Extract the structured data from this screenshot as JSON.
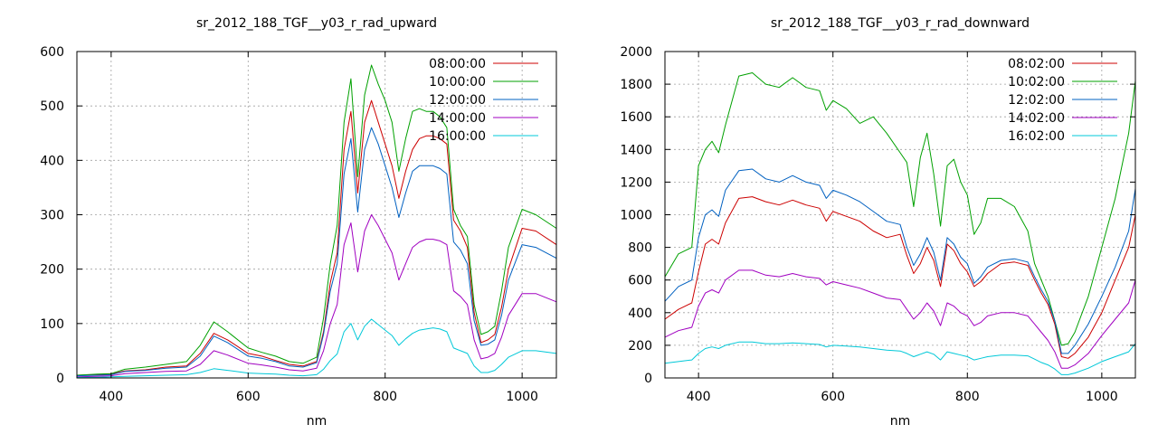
{
  "chart_data": [
    {
      "type": "line",
      "title": "sr_2012_188_TGF__y03_r_rad_upward",
      "xlabel": "nm",
      "ylabel": "",
      "xlim": [
        350,
        1050
      ],
      "ylim": [
        0,
        600
      ],
      "x_ticks": [
        400,
        600,
        800,
        1000
      ],
      "y_ticks": [
        0,
        100,
        200,
        300,
        400,
        500,
        600
      ],
      "grid": true,
      "legend_position": "top-right",
      "x": [
        350,
        380,
        400,
        420,
        450,
        480,
        510,
        530,
        550,
        570,
        600,
        620,
        640,
        660,
        680,
        700,
        710,
        720,
        730,
        740,
        750,
        760,
        770,
        780,
        790,
        800,
        810,
        820,
        830,
        840,
        850,
        860,
        870,
        880,
        890,
        900,
        910,
        920,
        930,
        940,
        950,
        960,
        970,
        980,
        1000,
        1020,
        1050
      ],
      "series": [
        {
          "name": "08:00:00",
          "color": "#cc0000",
          "values": [
            5,
            6,
            7,
            13,
            15,
            20,
            22,
            45,
            82,
            70,
            45,
            40,
            32,
            25,
            22,
            30,
            85,
            175,
            230,
            420,
            490,
            340,
            470,
            510,
            470,
            430,
            390,
            330,
            380,
            420,
            440,
            445,
            445,
            440,
            430,
            290,
            270,
            240,
            120,
            65,
            70,
            80,
            130,
            200,
            275,
            270,
            245
          ]
        },
        {
          "name": "10:00:00",
          "color": "#00a000",
          "values": [
            5,
            7,
            8,
            16,
            20,
            25,
            30,
            60,
            103,
            85,
            55,
            47,
            40,
            30,
            27,
            38,
            110,
            210,
            280,
            470,
            550,
            370,
            520,
            575,
            540,
            510,
            470,
            380,
            440,
            490,
            495,
            490,
            490,
            480,
            460,
            310,
            280,
            260,
            135,
            80,
            85,
            95,
            160,
            240,
            310,
            300,
            275
          ]
        },
        {
          "name": "12:00:00",
          "color": "#0060c0",
          "values": [
            4,
            5,
            6,
            12,
            14,
            18,
            20,
            40,
            77,
            65,
            40,
            36,
            30,
            22,
            20,
            28,
            80,
            160,
            210,
            375,
            440,
            305,
            420,
            460,
            430,
            390,
            350,
            295,
            340,
            380,
            390,
            390,
            390,
            385,
            375,
            250,
            235,
            210,
            105,
            60,
            62,
            70,
            115,
            180,
            245,
            240,
            220
          ]
        },
        {
          "name": "14:00:00",
          "color": "#a000c0",
          "values": [
            2,
            3,
            4,
            8,
            10,
            12,
            13,
            25,
            50,
            42,
            27,
            24,
            20,
            15,
            13,
            18,
            50,
            100,
            135,
            245,
            285,
            195,
            270,
            300,
            280,
            255,
            230,
            180,
            210,
            240,
            250,
            255,
            255,
            252,
            245,
            160,
            150,
            135,
            70,
            35,
            38,
            45,
            75,
            115,
            155,
            155,
            140
          ]
        },
        {
          "name": "16:00:00",
          "color": "#00c8d8",
          "values": [
            1,
            1,
            2,
            3,
            4,
            5,
            6,
            10,
            17,
            14,
            9,
            8,
            7,
            5,
            4,
            6,
            16,
            32,
            44,
            85,
            100,
            70,
            95,
            108,
            98,
            88,
            78,
            60,
            72,
            82,
            88,
            90,
            92,
            90,
            85,
            55,
            50,
            45,
            22,
            10,
            10,
            14,
            25,
            38,
            50,
            50,
            45
          ]
        }
      ]
    },
    {
      "type": "line",
      "title": "sr_2012_188_TGF__y03_r_rad_downward",
      "xlabel": "nm",
      "ylabel": "",
      "xlim": [
        350,
        1050
      ],
      "ylim": [
        0,
        2000
      ],
      "x_ticks": [
        400,
        600,
        800,
        1000
      ],
      "y_ticks": [
        0,
        200,
        400,
        600,
        800,
        1000,
        1200,
        1400,
        1600,
        1800,
        2000
      ],
      "grid": true,
      "legend_position": "top-right",
      "x": [
        350,
        370,
        390,
        400,
        410,
        420,
        430,
        440,
        460,
        480,
        500,
        520,
        540,
        560,
        580,
        590,
        600,
        620,
        640,
        660,
        680,
        700,
        710,
        720,
        730,
        740,
        750,
        760,
        770,
        780,
        790,
        800,
        810,
        820,
        830,
        850,
        870,
        890,
        900,
        910,
        920,
        930,
        940,
        950,
        960,
        980,
        1000,
        1020,
        1040,
        1050
      ],
      "series": [
        {
          "name": "08:02:00",
          "color": "#cc0000",
          "values": [
            360,
            420,
            460,
            650,
            820,
            850,
            820,
            950,
            1100,
            1110,
            1080,
            1060,
            1090,
            1060,
            1040,
            960,
            1020,
            990,
            960,
            900,
            860,
            880,
            750,
            640,
            700,
            800,
            720,
            560,
            820,
            780,
            700,
            650,
            560,
            590,
            640,
            700,
            710,
            690,
            600,
            520,
            450,
            330,
            130,
            120,
            150,
            250,
            400,
            600,
            800,
            1000
          ]
        },
        {
          "name": "10:02:00",
          "color": "#00a000",
          "values": [
            620,
            760,
            800,
            1300,
            1400,
            1450,
            1380,
            1550,
            1850,
            1870,
            1800,
            1780,
            1840,
            1780,
            1760,
            1640,
            1700,
            1650,
            1560,
            1600,
            1500,
            1380,
            1320,
            1050,
            1350,
            1500,
            1250,
            930,
            1300,
            1340,
            1200,
            1120,
            880,
            950,
            1100,
            1100,
            1050,
            900,
            700,
            600,
            500,
            350,
            200,
            210,
            280,
            500,
            800,
            1100,
            1500,
            1820
          ]
        },
        {
          "name": "12:02:00",
          "color": "#0060c0",
          "values": [
            470,
            560,
            600,
            860,
            1000,
            1030,
            990,
            1150,
            1270,
            1280,
            1220,
            1200,
            1240,
            1200,
            1180,
            1100,
            1150,
            1120,
            1080,
            1020,
            960,
            940,
            800,
            690,
            760,
            860,
            770,
            600,
            860,
            820,
            740,
            700,
            580,
            620,
            680,
            720,
            730,
            710,
            620,
            540,
            470,
            350,
            150,
            150,
            200,
            330,
            500,
            680,
            900,
            1160
          ]
        },
        {
          "name": "14:02:00",
          "color": "#a000c0",
          "values": [
            250,
            290,
            310,
            440,
            520,
            540,
            520,
            600,
            660,
            660,
            630,
            620,
            640,
            620,
            610,
            570,
            590,
            570,
            550,
            520,
            490,
            480,
            420,
            360,
            400,
            460,
            410,
            320,
            460,
            440,
            400,
            380,
            320,
            340,
            380,
            400,
            400,
            380,
            330,
            280,
            230,
            160,
            60,
            60,
            80,
            150,
            260,
            360,
            460,
            600
          ]
        },
        {
          "name": "16:02:00",
          "color": "#00c8d8",
          "values": [
            90,
            100,
            110,
            150,
            180,
            190,
            180,
            200,
            220,
            220,
            210,
            210,
            215,
            210,
            205,
            190,
            200,
            195,
            190,
            180,
            170,
            165,
            150,
            130,
            145,
            160,
            145,
            110,
            160,
            150,
            140,
            130,
            110,
            120,
            130,
            140,
            140,
            135,
            115,
            95,
            80,
            55,
            20,
            20,
            30,
            60,
            100,
            130,
            160,
            210
          ]
        }
      ]
    }
  ]
}
